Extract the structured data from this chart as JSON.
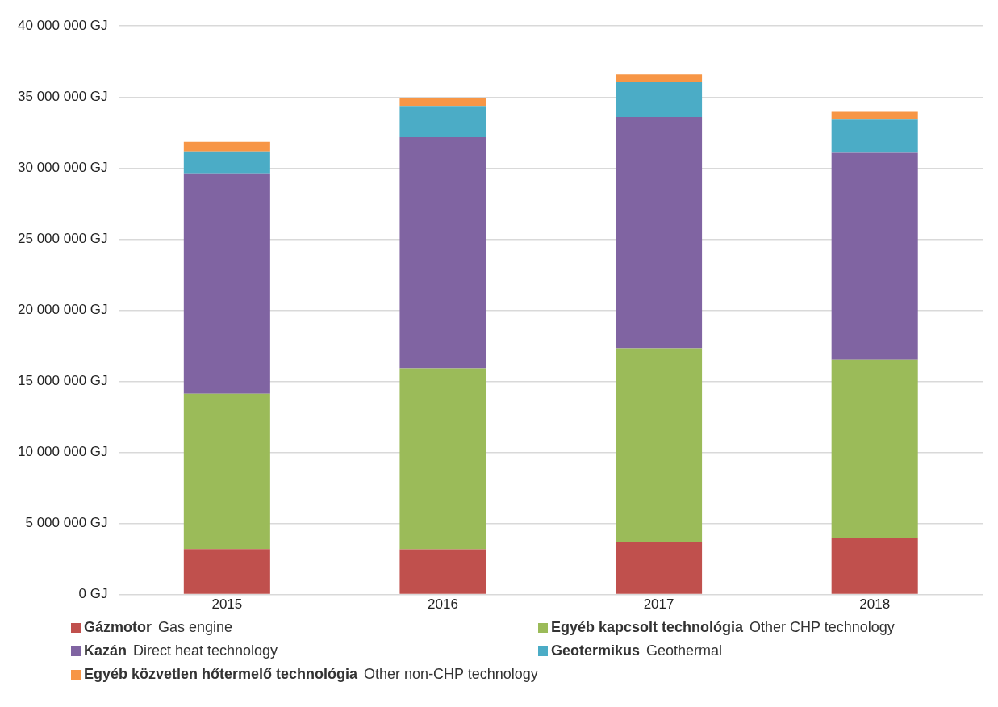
{
  "chart_data": {
    "type": "bar",
    "stacked": true,
    "categories": [
      "2015",
      "2016",
      "2017",
      "2018"
    ],
    "series": [
      {
        "name": "Gázmotor  Gas engine",
        "color": "#c0504d",
        "values": [
          3200000,
          3190000,
          3700000,
          3990000
        ]
      },
      {
        "name": "Egyéb kapcsolt technológia  Other CHP technology",
        "color": "#9bbb59",
        "values": [
          10930000,
          12710000,
          13620000,
          12530000
        ]
      },
      {
        "name": "Kazán  Direct heat technology",
        "color": "#8064a2",
        "values": [
          15500000,
          16270000,
          16270000,
          14610000
        ]
      },
      {
        "name": "Geotermikus  Geothermal",
        "color": "#4bacc6",
        "values": [
          1540000,
          2210000,
          2440000,
          2280000
        ]
      },
      {
        "name": "Egyéb közvetlen hőtermelő technológia  Other non-CHP technology",
        "color": "#f79646",
        "values": [
          680000,
          560000,
          560000,
          550000
        ]
      }
    ],
    "ylim": [
      0,
      40000000
    ],
    "yticks": [
      {
        "value": 0,
        "label": "0 GJ"
      },
      {
        "value": 5000000,
        "label": "5 000 000 GJ"
      },
      {
        "value": 10000000,
        "label": "10 000 000 GJ"
      },
      {
        "value": 15000000,
        "label": "15 000 000 GJ"
      },
      {
        "value": 20000000,
        "label": "20 000 000 GJ"
      },
      {
        "value": 25000000,
        "label": "25 000 000 GJ"
      },
      {
        "value": 30000000,
        "label": "30 000 000 GJ"
      },
      {
        "value": 35000000,
        "label": "35 000 000 GJ"
      },
      {
        "value": 40000000,
        "label": "40 000 000 GJ"
      }
    ],
    "grid": "y",
    "legend": "bottom"
  }
}
